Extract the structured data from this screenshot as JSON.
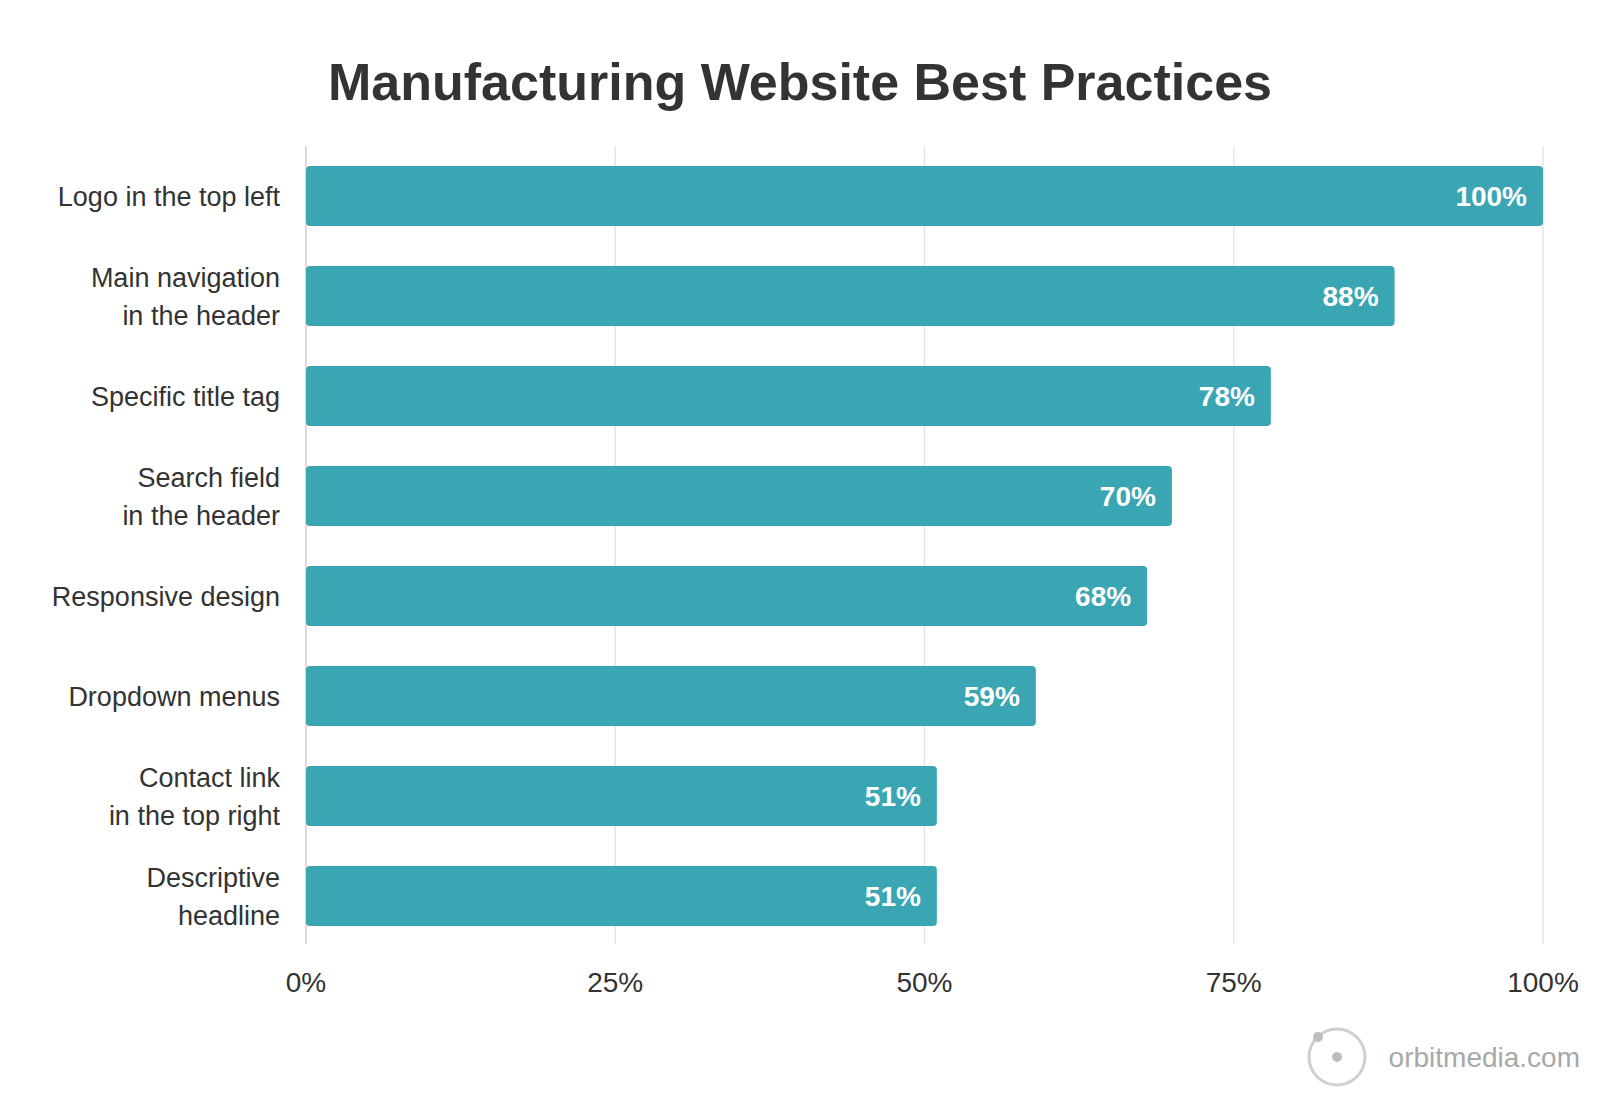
{
  "chart_data": {
    "type": "bar",
    "orientation": "horizontal",
    "title": "Manufacturing Website Best Practices",
    "categories": [
      "Logo in the top left",
      "Main navigation\nin the header",
      "Specific title tag",
      "Search field\nin the header",
      "Responsive design",
      "Dropdown menus",
      "Contact link\nin the top right",
      "Descriptive\nheadline"
    ],
    "values": [
      100,
      88,
      78,
      70,
      68,
      59,
      51,
      51
    ],
    "value_labels": [
      "100%",
      "88%",
      "78%",
      "70%",
      "68%",
      "59%",
      "51%",
      "51%"
    ],
    "data_labels": true,
    "color": "#3aa6b4",
    "xlim": [
      0,
      100
    ],
    "xticks": [
      {
        "value": 0,
        "label": "0%"
      },
      {
        "value": 25,
        "label": "25%"
      },
      {
        "value": 50,
        "label": "50%"
      },
      {
        "value": 75,
        "label": "75%"
      },
      {
        "value": 100,
        "label": "100%"
      }
    ],
    "grid": true,
    "annotations": [
      "orbitmedia.com"
    ]
  }
}
